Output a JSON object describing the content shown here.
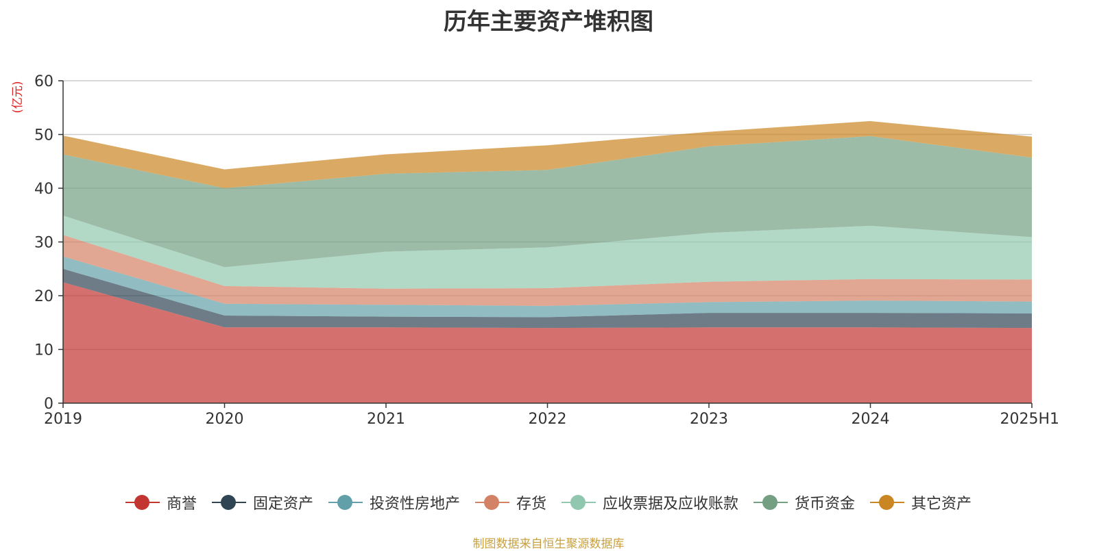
{
  "chart_data": {
    "type": "area",
    "stacked": true,
    "title": "历年主要资产堆积图",
    "ylabel": "(亿元)",
    "xlabel": "",
    "categories": [
      "2019",
      "2020",
      "2021",
      "2022",
      "2023",
      "2024",
      "2025H1"
    ],
    "ylim": [
      0,
      60
    ],
    "yticks": [
      "0",
      "10",
      "20",
      "30",
      "40",
      "50",
      "60"
    ],
    "grid": true,
    "legend_position": "bottom",
    "series": [
      {
        "name": "商誉",
        "color": "#c23531",
        "values": [
          22.5,
          14.1,
          14.1,
          14.0,
          14.1,
          14.1,
          14.0
        ]
      },
      {
        "name": "固定资产",
        "color": "#2f4554",
        "values": [
          2.5,
          2.2,
          2.0,
          2.0,
          2.7,
          2.7,
          2.7
        ]
      },
      {
        "name": "投资性房地产",
        "color": "#61a0a8",
        "values": [
          2.3,
          2.2,
          2.2,
          2.1,
          2.0,
          2.3,
          2.2
        ]
      },
      {
        "name": "存货",
        "color": "#d48265",
        "values": [
          4.0,
          3.3,
          3.0,
          3.3,
          3.8,
          4.0,
          4.1
        ]
      },
      {
        "name": "应收票据及应收账款",
        "color": "#91c7ae",
        "values": [
          3.6,
          3.5,
          6.9,
          7.6,
          9.1,
          9.9,
          7.9
        ]
      },
      {
        "name": "货币资金",
        "color": "#749f83",
        "values": [
          11.4,
          14.7,
          14.5,
          14.4,
          16.1,
          16.7,
          14.8
        ]
      },
      {
        "name": "其它资产",
        "color": "#ca8622",
        "values": [
          3.5,
          3.5,
          3.6,
          4.6,
          2.7,
          2.8,
          3.9
        ]
      }
    ],
    "source_note": "制图数据来自恒生聚源数据库"
  }
}
